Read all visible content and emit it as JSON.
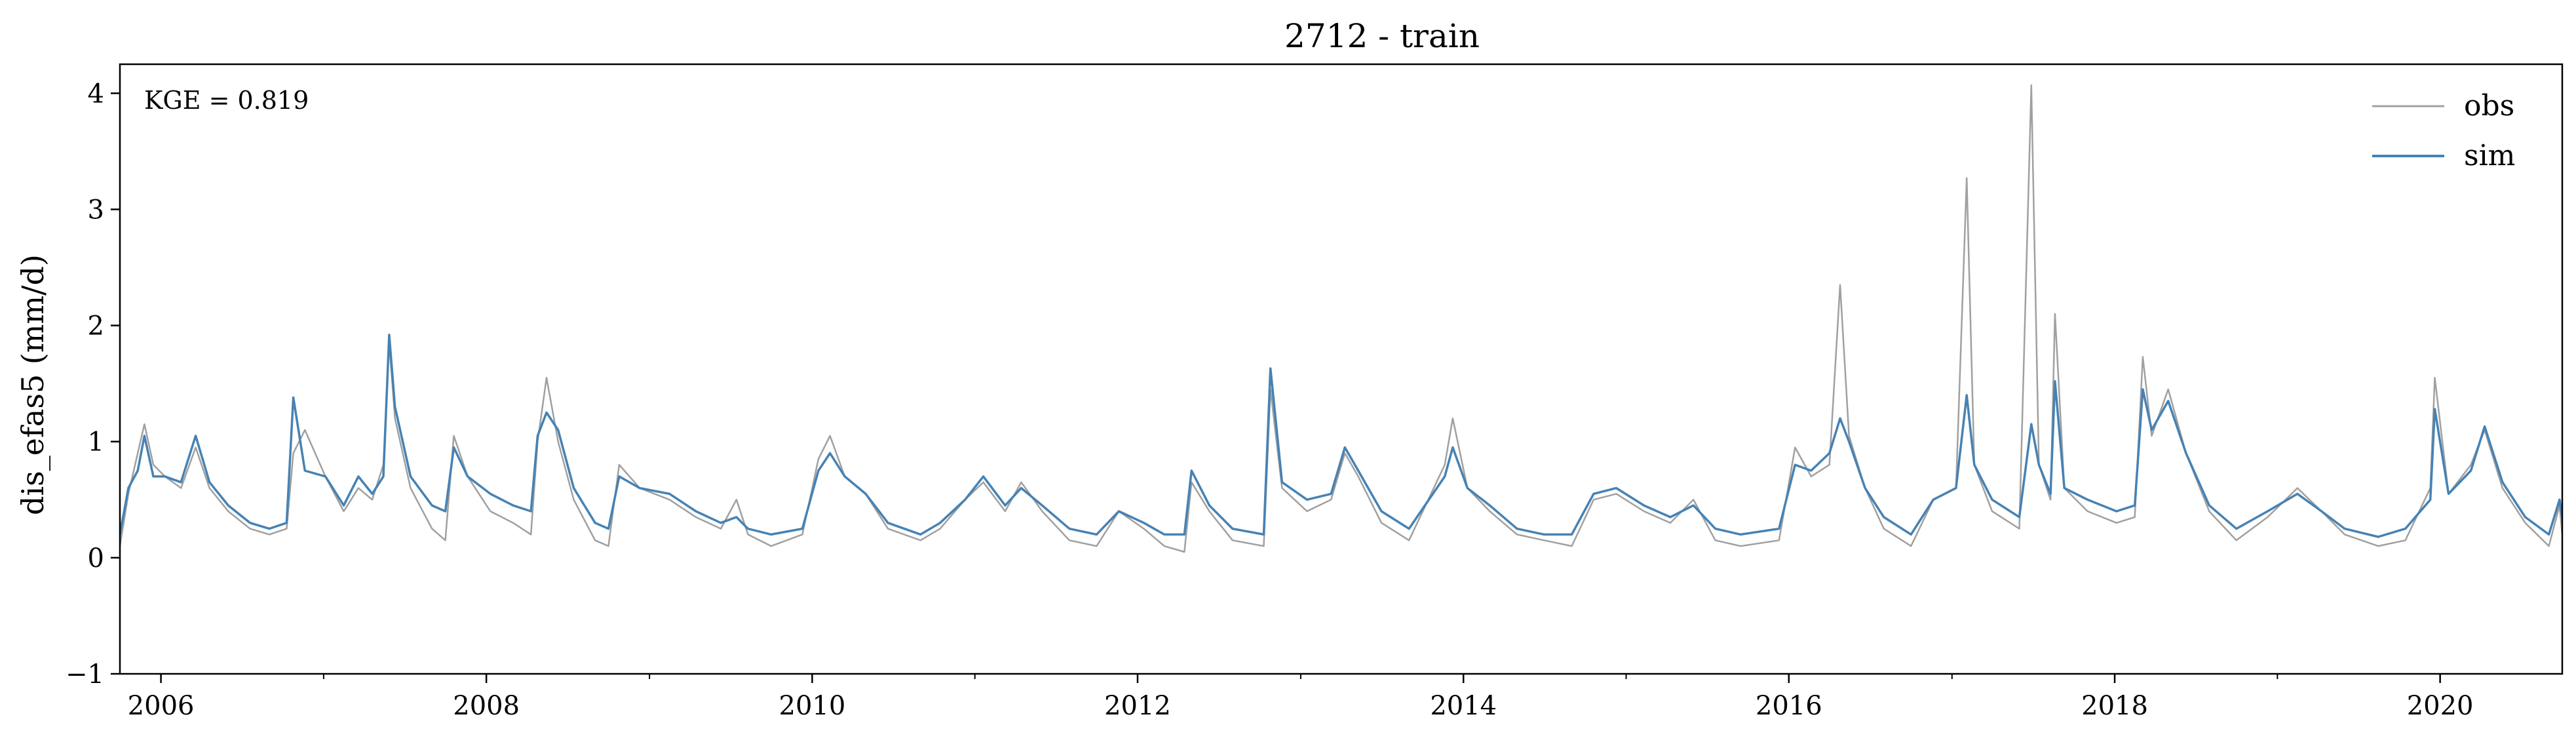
{
  "chart_data": {
    "type": "line",
    "title": "2712 - train",
    "xlabel": "",
    "ylabel": "dis_efas5 (mm/d)",
    "annotation": "KGE = 0.819",
    "xlim": [
      "2005-10-01",
      "2020-10-01"
    ],
    "ylim": [
      -1,
      4.25
    ],
    "x_ticks": [
      "2006-01-01",
      "2008-01-01",
      "2010-01-01",
      "2012-01-01",
      "2014-01-01",
      "2016-01-01",
      "2018-01-01",
      "2020-01-01"
    ],
    "x_tick_labels": [
      "2006",
      "2008",
      "2010",
      "2012",
      "2014",
      "2016",
      "2018",
      "2020"
    ],
    "y_ticks": [
      -1,
      0,
      1,
      2,
      3,
      4
    ],
    "y_tick_labels": [
      "−1",
      "0",
      "1",
      "2",
      "3",
      "4"
    ],
    "legend_position": "top-right",
    "grid": false,
    "series": [
      {
        "name": "obs",
        "color": "#a0a0a0",
        "points": [
          [
            "2005-10-01",
            0.1
          ],
          [
            "2005-10-20",
            0.55
          ],
          [
            "2005-11-10",
            0.9
          ],
          [
            "2005-11-25",
            1.15
          ],
          [
            "2005-12-15",
            0.8
          ],
          [
            "2006-01-10",
            0.7
          ],
          [
            "2006-02-15",
            0.6
          ],
          [
            "2006-03-20",
            0.95
          ],
          [
            "2006-04-20",
            0.6
          ],
          [
            "2006-06-01",
            0.4
          ],
          [
            "2006-07-20",
            0.25
          ],
          [
            "2006-09-01",
            0.2
          ],
          [
            "2006-10-10",
            0.25
          ],
          [
            "2006-10-25",
            0.9
          ],
          [
            "2006-11-20",
            1.1
          ],
          [
            "2007-01-05",
            0.7
          ],
          [
            "2007-02-15",
            0.4
          ],
          [
            "2007-03-20",
            0.6
          ],
          [
            "2007-04-20",
            0.5
          ],
          [
            "2007-05-15",
            0.8
          ],
          [
            "2007-05-28",
            1.85
          ],
          [
            "2007-06-10",
            1.2
          ],
          [
            "2007-07-15",
            0.6
          ],
          [
            "2007-09-01",
            0.25
          ],
          [
            "2007-10-01",
            0.15
          ],
          [
            "2007-10-20",
            1.05
          ],
          [
            "2007-11-20",
            0.7
          ],
          [
            "2008-01-10",
            0.4
          ],
          [
            "2008-03-01",
            0.3
          ],
          [
            "2008-04-10",
            0.2
          ],
          [
            "2008-04-25",
            1.0
          ],
          [
            "2008-05-15",
            1.55
          ],
          [
            "2008-06-10",
            1.0
          ],
          [
            "2008-07-15",
            0.5
          ],
          [
            "2008-09-01",
            0.15
          ],
          [
            "2008-10-01",
            0.1
          ],
          [
            "2008-10-25",
            0.8
          ],
          [
            "2008-12-10",
            0.6
          ],
          [
            "2009-02-15",
            0.5
          ],
          [
            "2009-04-15",
            0.35
          ],
          [
            "2009-06-10",
            0.25
          ],
          [
            "2009-07-15",
            0.5
          ],
          [
            "2009-08-10",
            0.2
          ],
          [
            "2009-10-01",
            0.1
          ],
          [
            "2009-12-10",
            0.2
          ],
          [
            "2010-01-15",
            0.85
          ],
          [
            "2010-02-10",
            1.05
          ],
          [
            "2010-03-15",
            0.7
          ],
          [
            "2010-05-01",
            0.55
          ],
          [
            "2010-06-20",
            0.25
          ],
          [
            "2010-09-01",
            0.15
          ],
          [
            "2010-10-15",
            0.25
          ],
          [
            "2010-12-10",
            0.5
          ],
          [
            "2011-01-20",
            0.65
          ],
          [
            "2011-03-10",
            0.4
          ],
          [
            "2011-04-15",
            0.65
          ],
          [
            "2011-06-01",
            0.4
          ],
          [
            "2011-08-01",
            0.15
          ],
          [
            "2011-10-01",
            0.1
          ],
          [
            "2011-11-20",
            0.4
          ],
          [
            "2012-01-15",
            0.25
          ],
          [
            "2012-03-01",
            0.1
          ],
          [
            "2012-04-15",
            0.05
          ],
          [
            "2012-05-01",
            0.65
          ],
          [
            "2012-06-10",
            0.4
          ],
          [
            "2012-08-01",
            0.15
          ],
          [
            "2012-10-10",
            0.1
          ],
          [
            "2012-10-25",
            1.45
          ],
          [
            "2012-11-20",
            0.6
          ],
          [
            "2013-01-15",
            0.4
          ],
          [
            "2013-03-10",
            0.5
          ],
          [
            "2013-04-10",
            0.9
          ],
          [
            "2013-05-10",
            0.7
          ],
          [
            "2013-07-01",
            0.3
          ],
          [
            "2013-09-01",
            0.15
          ],
          [
            "2013-11-20",
            0.8
          ],
          [
            "2013-12-08",
            1.2
          ],
          [
            "2014-01-10",
            0.6
          ],
          [
            "2014-03-01",
            0.4
          ],
          [
            "2014-05-01",
            0.2
          ],
          [
            "2014-07-01",
            0.15
          ],
          [
            "2014-09-01",
            0.1
          ],
          [
            "2014-10-20",
            0.5
          ],
          [
            "2014-12-10",
            0.55
          ],
          [
            "2015-02-10",
            0.4
          ],
          [
            "2015-04-10",
            0.3
          ],
          [
            "2015-06-01",
            0.5
          ],
          [
            "2015-07-20",
            0.15
          ],
          [
            "2015-09-15",
            0.1
          ],
          [
            "2015-12-10",
            0.15
          ],
          [
            "2016-01-15",
            0.95
          ],
          [
            "2016-02-20",
            0.7
          ],
          [
            "2016-04-01",
            0.8
          ],
          [
            "2016-04-25",
            2.35
          ],
          [
            "2016-05-15",
            1.05
          ],
          [
            "2016-06-20",
            0.6
          ],
          [
            "2016-08-01",
            0.25
          ],
          [
            "2016-10-01",
            0.1
          ],
          [
            "2016-11-20",
            0.5
          ],
          [
            "2017-01-10",
            0.6
          ],
          [
            "2017-02-03",
            3.27
          ],
          [
            "2017-02-20",
            0.8
          ],
          [
            "2017-04-01",
            0.4
          ],
          [
            "2017-06-01",
            0.25
          ],
          [
            "2017-06-28",
            4.07
          ],
          [
            "2017-07-15",
            0.8
          ],
          [
            "2017-08-10",
            0.5
          ],
          [
            "2017-08-20",
            2.1
          ],
          [
            "2017-09-10",
            0.6
          ],
          [
            "2017-11-01",
            0.4
          ],
          [
            "2018-01-05",
            0.3
          ],
          [
            "2018-02-15",
            0.35
          ],
          [
            "2018-03-05",
            1.73
          ],
          [
            "2018-03-25",
            1.05
          ],
          [
            "2018-05-01",
            1.45
          ],
          [
            "2018-06-10",
            0.9
          ],
          [
            "2018-08-01",
            0.4
          ],
          [
            "2018-10-01",
            0.15
          ],
          [
            "2018-12-10",
            0.35
          ],
          [
            "2019-02-15",
            0.6
          ],
          [
            "2019-04-10",
            0.4
          ],
          [
            "2019-06-01",
            0.2
          ],
          [
            "2019-08-15",
            0.1
          ],
          [
            "2019-10-15",
            0.15
          ],
          [
            "2019-12-10",
            0.6
          ],
          [
            "2019-12-20",
            1.55
          ],
          [
            "2020-01-20",
            0.55
          ],
          [
            "2020-03-10",
            0.8
          ],
          [
            "2020-04-10",
            1.1
          ],
          [
            "2020-05-20",
            0.6
          ],
          [
            "2020-07-10",
            0.3
          ],
          [
            "2020-09-01",
            0.1
          ],
          [
            "2020-09-25",
            0.45
          ],
          [
            "2020-10-01",
            0.2
          ]
        ]
      },
      {
        "name": "sim",
        "color": "#4682b4",
        "points": [
          [
            "2005-10-01",
            0.2
          ],
          [
            "2005-10-20",
            0.6
          ],
          [
            "2005-11-10",
            0.75
          ],
          [
            "2005-11-25",
            1.05
          ],
          [
            "2005-12-15",
            0.7
          ],
          [
            "2006-01-10",
            0.7
          ],
          [
            "2006-02-15",
            0.65
          ],
          [
            "2006-03-20",
            1.05
          ],
          [
            "2006-04-20",
            0.65
          ],
          [
            "2006-06-01",
            0.45
          ],
          [
            "2006-07-20",
            0.3
          ],
          [
            "2006-09-01",
            0.25
          ],
          [
            "2006-10-10",
            0.3
          ],
          [
            "2006-10-25",
            1.38
          ],
          [
            "2006-11-20",
            0.75
          ],
          [
            "2007-01-05",
            0.7
          ],
          [
            "2007-02-15",
            0.45
          ],
          [
            "2007-03-20",
            0.7
          ],
          [
            "2007-04-20",
            0.55
          ],
          [
            "2007-05-15",
            0.7
          ],
          [
            "2007-05-28",
            1.92
          ],
          [
            "2007-06-10",
            1.3
          ],
          [
            "2007-07-15",
            0.7
          ],
          [
            "2007-09-01",
            0.45
          ],
          [
            "2007-10-01",
            0.4
          ],
          [
            "2007-10-20",
            0.95
          ],
          [
            "2007-11-20",
            0.7
          ],
          [
            "2008-01-10",
            0.55
          ],
          [
            "2008-03-01",
            0.45
          ],
          [
            "2008-04-10",
            0.4
          ],
          [
            "2008-04-25",
            1.05
          ],
          [
            "2008-05-15",
            1.25
          ],
          [
            "2008-06-10",
            1.1
          ],
          [
            "2008-07-15",
            0.6
          ],
          [
            "2008-09-01",
            0.3
          ],
          [
            "2008-10-01",
            0.25
          ],
          [
            "2008-10-25",
            0.7
          ],
          [
            "2008-12-10",
            0.6
          ],
          [
            "2009-02-15",
            0.55
          ],
          [
            "2009-04-15",
            0.4
          ],
          [
            "2009-06-10",
            0.3
          ],
          [
            "2009-07-15",
            0.35
          ],
          [
            "2009-08-10",
            0.25
          ],
          [
            "2009-10-01",
            0.2
          ],
          [
            "2009-12-10",
            0.25
          ],
          [
            "2010-01-15",
            0.75
          ],
          [
            "2010-02-10",
            0.9
          ],
          [
            "2010-03-15",
            0.7
          ],
          [
            "2010-05-01",
            0.55
          ],
          [
            "2010-06-20",
            0.3
          ],
          [
            "2010-09-01",
            0.2
          ],
          [
            "2010-10-15",
            0.3
          ],
          [
            "2010-12-10",
            0.5
          ],
          [
            "2011-01-20",
            0.7
          ],
          [
            "2011-03-10",
            0.45
          ],
          [
            "2011-04-15",
            0.6
          ],
          [
            "2011-06-01",
            0.45
          ],
          [
            "2011-08-01",
            0.25
          ],
          [
            "2011-10-01",
            0.2
          ],
          [
            "2011-11-20",
            0.4
          ],
          [
            "2012-01-15",
            0.3
          ],
          [
            "2012-03-01",
            0.2
          ],
          [
            "2012-04-15",
            0.2
          ],
          [
            "2012-05-01",
            0.75
          ],
          [
            "2012-06-10",
            0.45
          ],
          [
            "2012-08-01",
            0.25
          ],
          [
            "2012-10-10",
            0.2
          ],
          [
            "2012-10-25",
            1.63
          ],
          [
            "2012-11-20",
            0.65
          ],
          [
            "2013-01-15",
            0.5
          ],
          [
            "2013-03-10",
            0.55
          ],
          [
            "2013-04-10",
            0.95
          ],
          [
            "2013-05-10",
            0.75
          ],
          [
            "2013-07-01",
            0.4
          ],
          [
            "2013-09-01",
            0.25
          ],
          [
            "2013-11-20",
            0.7
          ],
          [
            "2013-12-08",
            0.95
          ],
          [
            "2014-01-10",
            0.6
          ],
          [
            "2014-03-01",
            0.45
          ],
          [
            "2014-05-01",
            0.25
          ],
          [
            "2014-07-01",
            0.2
          ],
          [
            "2014-09-01",
            0.2
          ],
          [
            "2014-10-20",
            0.55
          ],
          [
            "2014-12-10",
            0.6
          ],
          [
            "2015-02-10",
            0.45
          ],
          [
            "2015-04-10",
            0.35
          ],
          [
            "2015-06-01",
            0.45
          ],
          [
            "2015-07-20",
            0.25
          ],
          [
            "2015-09-15",
            0.2
          ],
          [
            "2015-12-10",
            0.25
          ],
          [
            "2016-01-15",
            0.8
          ],
          [
            "2016-02-20",
            0.75
          ],
          [
            "2016-04-01",
            0.9
          ],
          [
            "2016-04-25",
            1.2
          ],
          [
            "2016-05-15",
            1.0
          ],
          [
            "2016-06-20",
            0.6
          ],
          [
            "2016-08-01",
            0.35
          ],
          [
            "2016-10-01",
            0.2
          ],
          [
            "2016-11-20",
            0.5
          ],
          [
            "2017-01-10",
            0.6
          ],
          [
            "2017-02-03",
            1.4
          ],
          [
            "2017-02-20",
            0.8
          ],
          [
            "2017-04-01",
            0.5
          ],
          [
            "2017-06-01",
            0.35
          ],
          [
            "2017-06-28",
            1.15
          ],
          [
            "2017-07-15",
            0.8
          ],
          [
            "2017-08-10",
            0.55
          ],
          [
            "2017-08-20",
            1.52
          ],
          [
            "2017-09-10",
            0.6
          ],
          [
            "2017-11-01",
            0.5
          ],
          [
            "2018-01-05",
            0.4
          ],
          [
            "2018-02-15",
            0.45
          ],
          [
            "2018-03-05",
            1.45
          ],
          [
            "2018-03-25",
            1.1
          ],
          [
            "2018-05-01",
            1.35
          ],
          [
            "2018-06-10",
            0.9
          ],
          [
            "2018-08-01",
            0.45
          ],
          [
            "2018-10-01",
            0.25
          ],
          [
            "2018-12-10",
            0.4
          ],
          [
            "2019-02-15",
            0.55
          ],
          [
            "2019-04-10",
            0.4
          ],
          [
            "2019-06-01",
            0.25
          ],
          [
            "2019-08-15",
            0.18
          ],
          [
            "2019-10-15",
            0.25
          ],
          [
            "2019-12-10",
            0.5
          ],
          [
            "2019-12-20",
            1.28
          ],
          [
            "2020-01-20",
            0.55
          ],
          [
            "2020-03-10",
            0.75
          ],
          [
            "2020-04-10",
            1.13
          ],
          [
            "2020-05-20",
            0.65
          ],
          [
            "2020-07-10",
            0.35
          ],
          [
            "2020-09-01",
            0.2
          ],
          [
            "2020-09-25",
            0.5
          ],
          [
            "2020-10-01",
            0.35
          ]
        ]
      }
    ]
  }
}
